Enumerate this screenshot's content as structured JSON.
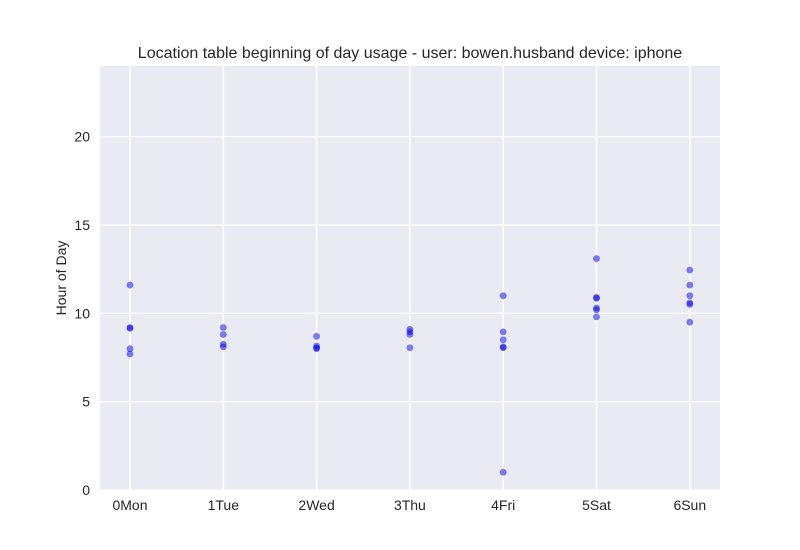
{
  "chart_data": {
    "type": "scatter",
    "title": "Location table beginning of day usage -  user: bowen.husband device: iphone",
    "xlabel": "",
    "ylabel": "Hour of Day",
    "categories": [
      "0Mon",
      "1Tue",
      "2Wed",
      "3Thu",
      "4Fri",
      "5Sat",
      "6Sun"
    ],
    "yticks": [
      0,
      5,
      10,
      15,
      20
    ],
    "ylim": [
      0,
      24
    ],
    "grid": true,
    "colors": {
      "background": "#eaeaf2",
      "grid": "#ffffff",
      "point": "#0000ee"
    },
    "series": [
      {
        "points": [
          {
            "x": "0Mon",
            "y": 11.6
          },
          {
            "x": "0Mon",
            "y": 9.2
          },
          {
            "x": "0Mon",
            "y": 9.15
          },
          {
            "x": "0Mon",
            "y": 8.0
          },
          {
            "x": "0Mon",
            "y": 7.7
          },
          {
            "x": "1Tue",
            "y": 9.2
          },
          {
            "x": "1Tue",
            "y": 8.8
          },
          {
            "x": "1Tue",
            "y": 8.25
          },
          {
            "x": "1Tue",
            "y": 8.1
          },
          {
            "x": "2Wed",
            "y": 8.7
          },
          {
            "x": "2Wed",
            "y": 8.15
          },
          {
            "x": "2Wed",
            "y": 8.05
          },
          {
            "x": "2Wed",
            "y": 8.0
          },
          {
            "x": "3Thu",
            "y": 9.1
          },
          {
            "x": "3Thu",
            "y": 8.95
          },
          {
            "x": "3Thu",
            "y": 8.8
          },
          {
            "x": "3Thu",
            "y": 8.05
          },
          {
            "x": "4Fri",
            "y": 11.0
          },
          {
            "x": "4Fri",
            "y": 8.95
          },
          {
            "x": "4Fri",
            "y": 8.5
          },
          {
            "x": "4Fri",
            "y": 8.1
          },
          {
            "x": "4Fri",
            "y": 8.05
          },
          {
            "x": "4Fri",
            "y": 1.0
          },
          {
            "x": "5Sat",
            "y": 13.1
          },
          {
            "x": "5Sat",
            "y": 10.9
          },
          {
            "x": "5Sat",
            "y": 10.85
          },
          {
            "x": "5Sat",
            "y": 10.3
          },
          {
            "x": "5Sat",
            "y": 10.2
          },
          {
            "x": "5Sat",
            "y": 9.8
          },
          {
            "x": "6Sun",
            "y": 12.45
          },
          {
            "x": "6Sun",
            "y": 11.6
          },
          {
            "x": "6Sun",
            "y": 11.0
          },
          {
            "x": "6Sun",
            "y": 10.6
          },
          {
            "x": "6Sun",
            "y": 10.5
          },
          {
            "x": "6Sun",
            "y": 9.5
          }
        ]
      }
    ]
  }
}
